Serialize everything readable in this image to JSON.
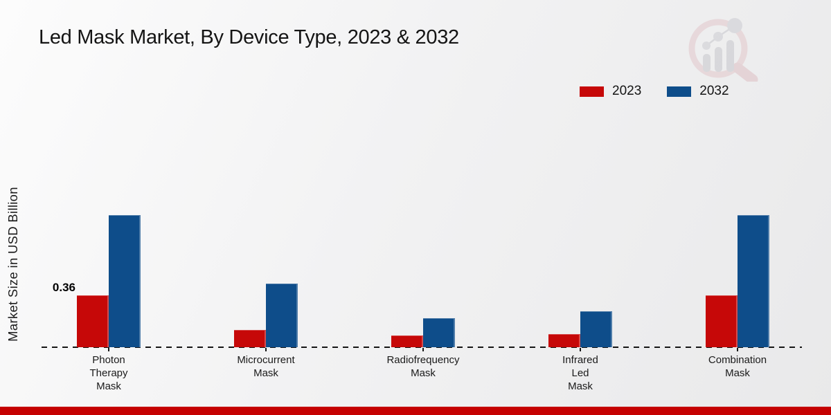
{
  "title": "Led Mask Market, By Device Type, 2023 & 2032",
  "ylabel": "Market Size in USD Billion",
  "legend": {
    "items": [
      {
        "label": "2023",
        "color": "#c60808"
      },
      {
        "label": "2032",
        "color": "#0e4d8a"
      }
    ]
  },
  "watermark": {
    "name": "market-research-future-logo"
  },
  "footer": {
    "accent_color": "#c50101"
  },
  "chart_data": {
    "type": "bar",
    "title": "Led Mask Market, By Device Type, 2023 & 2032",
    "ylabel": "Market Size in USD Billion",
    "xlabel": "",
    "unit": "USD Billion",
    "categories": [
      "Photon Therapy Mask",
      "Microcurrent Mask",
      "Radiofrequency Mask",
      "Infrared Led Mask",
      "Combination Mask"
    ],
    "category_label_lines": [
      [
        "Photon",
        "Therapy",
        "Mask"
      ],
      [
        "Microcurrent",
        "Mask"
      ],
      [
        "Radiofrequency",
        "Mask"
      ],
      [
        "Infrared",
        "Led",
        "Mask"
      ],
      [
        "Combination",
        "Mask"
      ]
    ],
    "series": [
      {
        "name": "2023",
        "color": "#c60808",
        "values": [
          0.36,
          0.12,
          0.08,
          0.09,
          0.36
        ]
      },
      {
        "name": "2032",
        "color": "#0e4d8a",
        "values": [
          0.92,
          0.44,
          0.2,
          0.25,
          0.92
        ]
      }
    ],
    "value_labels": [
      {
        "series": "2023",
        "category": "Photon Therapy Mask",
        "text": "0.36"
      }
    ],
    "ylim": [
      0,
      1.0
    ],
    "y_axis_ticks_visible": false,
    "baseline_style": "dashed",
    "grid": false,
    "legend_position": "top-right"
  }
}
